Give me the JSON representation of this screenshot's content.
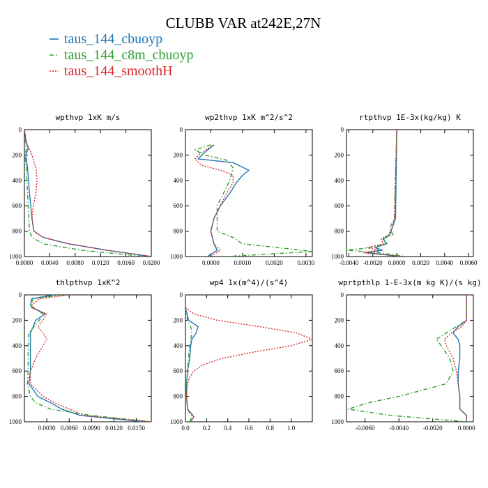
{
  "title": "CLUBB VAR at242E,27N",
  "colors": {
    "taus_144_cbuoyp": "#1f77b4",
    "taus_144_c8m_cbuoyp": "#2ca02c",
    "taus_144_smoothH": "#d62728"
  },
  "legend": [
    {
      "label": "taus_144_cbuoyp",
      "color": "#1f77b4",
      "dash": "solid"
    },
    {
      "label": "taus_144_c8m_cbuoyp",
      "color": "#2ca02c",
      "dash": "dashdot"
    },
    {
      "label": "taus_144_smoothH",
      "color": "#d62728",
      "dash": "dotted"
    }
  ],
  "chart_data": [
    {
      "type": "line",
      "title": "wpthvp  1xK m/s",
      "xlim": [
        0,
        0.02
      ],
      "ylim": [
        1000,
        0
      ],
      "xticks": [
        "0.0000",
        "0.0040",
        "0.0080",
        "0.0120",
        "0.0160",
        "0.0200"
      ],
      "xtick_values": [
        0,
        0.004,
        0.008,
        0.012,
        0.016,
        0.02
      ],
      "yticks": [
        "0",
        "200",
        "400",
        "600",
        "800",
        "1000"
      ],
      "series": [
        {
          "name": "taus_144_cbuoyp",
          "y": [
            0,
            100,
            150,
            200,
            300,
            500,
            700,
            800,
            850,
            900,
            950,
            1000
          ],
          "x": [
            0.0,
            0.0003,
            0.0006,
            0.0002,
            0.0005,
            0.0008,
            0.0012,
            0.0015,
            0.003,
            0.007,
            0.013,
            0.02
          ]
        },
        {
          "name": "taus_144_c8m_cbuoyp",
          "y": [
            0,
            100,
            150,
            200,
            300,
            500,
            700,
            800,
            850,
            900,
            950,
            1000
          ],
          "x": [
            0.0,
            0.0002,
            0.0003,
            0.0001,
            0.0003,
            0.0005,
            0.0007,
            0.0008,
            0.0012,
            0.003,
            0.009,
            0.019
          ]
        },
        {
          "name": "taus_144_smoothH",
          "y": [
            0,
            100,
            200,
            300,
            400,
            500,
            600,
            700,
            800,
            850,
            900,
            950,
            1000
          ],
          "x": [
            0.0,
            0.0003,
            0.0012,
            0.0018,
            0.002,
            0.0018,
            0.0014,
            0.0012,
            0.0015,
            0.003,
            0.007,
            0.013,
            0.02
          ]
        }
      ]
    },
    {
      "type": "line",
      "title": "wp2thvp  1xK m^2/s^2",
      "xlim": [
        -0.0008,
        0.0032
      ],
      "ylim": [
        1000,
        0
      ],
      "xticks": [
        "0.0000",
        "0.0010",
        "0.0020",
        "0.0030"
      ],
      "xtick_values": [
        0,
        0.001,
        0.002,
        0.003
      ],
      "yticks": [
        "0",
        "200",
        "400",
        "600",
        "800",
        "1000"
      ],
      "series": [
        {
          "name": "taus_144_cbuoyp",
          "y": [
            120,
            180,
            230,
            260,
            320,
            360,
            420,
            500,
            600,
            700,
            800,
            900,
            950,
            1000
          ],
          "x": [
            0.0001,
            -0.0002,
            -0.0004,
            0.0007,
            0.0012,
            0.001,
            0.0008,
            0.0006,
            0.0003,
            0.0001,
            0.0,
            0.0001,
            0.0002,
            -0.0001
          ]
        },
        {
          "name": "taus_144_c8m_cbuoyp",
          "y": [
            120,
            160,
            200,
            240,
            300,
            400,
            500,
            600,
            700,
            800,
            850,
            900,
            940,
            960,
            1000
          ],
          "x": [
            0.0,
            -0.0005,
            -0.0002,
            0.0005,
            0.0007,
            0.0006,
            0.0004,
            0.0002,
            0.0002,
            0.0002,
            0.0007,
            0.001,
            0.0025,
            0.0032,
            0.0005
          ]
        },
        {
          "name": "taus_144_smoothH",
          "y": [
            120,
            180,
            230,
            280,
            320,
            360,
            420,
            500,
            600,
            700,
            800,
            900,
            950,
            1000
          ],
          "x": [
            0.0001,
            -0.0003,
            -0.0005,
            -0.0003,
            0.0003,
            0.0007,
            0.0007,
            0.0005,
            0.0003,
            0.0001,
            0.0,
            0.0001,
            0.0003,
            0.0
          ]
        }
      ]
    },
    {
      "type": "line",
      "title": "rtpthvp  1E-3x(kg/kg) K",
      "xlim": [
        -0.0042,
        0.0064
      ],
      "ylim": [
        1000,
        0
      ],
      "xticks": [
        "-0.0040",
        "-0.0020",
        "0.0000",
        "0.0020",
        "0.0040",
        "0.0060"
      ],
      "xtick_values": [
        -0.004,
        -0.002,
        0,
        0.002,
        0.004,
        0.006
      ],
      "yticks": [
        "0",
        "200",
        "400",
        "600",
        "800",
        "1000"
      ],
      "series": [
        {
          "name": "taus_144_cbuoyp",
          "y": [
            0,
            700,
            780,
            830,
            860,
            900,
            930,
            950,
            970,
            1000
          ],
          "x": [
            0.0,
            -0.0001,
            -0.0004,
            -0.0006,
            -0.0011,
            -0.0009,
            -0.0018,
            -0.0012,
            -0.0025,
            0.0004
          ]
        },
        {
          "name": "taus_144_c8m_cbuoyp",
          "y": [
            0,
            700,
            780,
            830,
            860,
            900,
            930,
            950,
            970,
            1000
          ],
          "x": [
            0.0,
            -0.0002,
            -0.0006,
            -0.0003,
            -0.0012,
            -0.0008,
            -0.0022,
            -0.0042,
            -0.0015,
            0.0008
          ]
        },
        {
          "name": "taus_144_smoothH",
          "y": [
            0,
            700,
            780,
            830,
            860,
            900,
            930,
            950,
            970,
            1000
          ],
          "x": [
            0.0,
            -0.0002,
            -0.0004,
            -0.0007,
            -0.0013,
            -0.0011,
            -0.0025,
            -0.0015,
            -0.0028,
            0.0005
          ]
        }
      ]
    },
    {
      "type": "line",
      "title": "thlpthvp  1xK^2",
      "xlim": [
        0,
        0.017
      ],
      "ylim": [
        1000,
        0
      ],
      "xticks": [
        "0.0030",
        "0.0060",
        "0.0090",
        "0.0120",
        "0.0150"
      ],
      "xtick_values": [
        0.003,
        0.006,
        0.009,
        0.012,
        0.015
      ],
      "yticks": [
        "0",
        "200",
        "400",
        "600",
        "800",
        "1000"
      ],
      "series": [
        {
          "name": "taus_144_cbuoyp",
          "y": [
            0,
            30,
            80,
            100,
            150,
            200,
            250,
            300,
            400,
            500,
            600,
            700,
            800,
            850,
            900,
            950,
            1000
          ],
          "x": [
            0.004,
            0.001,
            0.0008,
            0.001,
            0.0028,
            0.0015,
            0.0012,
            0.0008,
            0.0008,
            0.0008,
            0.0008,
            0.0006,
            0.0018,
            0.0035,
            0.005,
            0.0075,
            0.016
          ]
        },
        {
          "name": "taus_144_c8m_cbuoyp",
          "y": [
            0,
            30,
            80,
            100,
            150,
            200,
            250,
            300,
            400,
            500,
            600,
            700,
            800,
            850,
            900,
            950,
            1000
          ],
          "x": [
            0.005,
            0.0012,
            0.0008,
            0.0012,
            0.0025,
            0.002,
            0.0013,
            0.0006,
            0.0005,
            0.0005,
            0.0005,
            0.0004,
            0.0008,
            0.0015,
            0.0035,
            0.009,
            0.017
          ]
        },
        {
          "name": "taus_144_smoothH",
          "y": [
            0,
            30,
            80,
            100,
            150,
            200,
            250,
            300,
            350,
            400,
            500,
            600,
            700,
            800,
            850,
            900,
            950,
            1000
          ],
          "x": [
            0.006,
            0.002,
            0.001,
            0.001,
            0.003,
            0.0025,
            0.0018,
            0.0025,
            0.003,
            0.0025,
            0.0015,
            0.0008,
            0.0008,
            0.0025,
            0.004,
            0.006,
            0.008,
            0.017
          ]
        }
      ]
    },
    {
      "type": "line",
      "title": "wp4  1x(m^4)/(s^4)",
      "xlim": [
        0,
        1.2
      ],
      "ylim": [
        1000,
        0
      ],
      "xticks": [
        "0.0",
        "0.2",
        "0.4",
        "0.6",
        "0.8",
        "1.0"
      ],
      "xtick_values": [
        0,
        0.2,
        0.4,
        0.6,
        0.8,
        1.0
      ],
      "yticks": [
        "0",
        "200",
        "400",
        "600",
        "800",
        "1000"
      ],
      "series": [
        {
          "name": "taus_144_cbuoyp",
          "y": [
            100,
            200,
            250,
            300,
            350,
            400,
            500,
            600,
            700,
            800,
            900,
            960,
            1000
          ],
          "x": [
            0.0,
            0.03,
            0.12,
            0.1,
            0.06,
            0.05,
            0.04,
            0.02,
            0.01,
            0.01,
            0.02,
            0.08,
            0.05
          ]
        },
        {
          "name": "taus_144_c8m_cbuoyp",
          "y": [
            100,
            200,
            250,
            300,
            350,
            400,
            500,
            600,
            700,
            800,
            900,
            960,
            1000
          ],
          "x": [
            0.0,
            0.02,
            0.05,
            0.06,
            0.05,
            0.04,
            0.03,
            0.02,
            0.01,
            0.01,
            0.02,
            0.06,
            0.04
          ]
        },
        {
          "name": "taus_144_smoothH",
          "y": [
            100,
            150,
            200,
            250,
            300,
            350,
            400,
            450,
            500,
            550,
            600,
            650,
            700,
            800,
            900,
            960,
            1000
          ],
          "x": [
            0.0,
            0.08,
            0.3,
            0.7,
            1.05,
            1.2,
            1.0,
            0.65,
            0.35,
            0.17,
            0.08,
            0.04,
            0.02,
            0.01,
            0.02,
            0.08,
            0.05
          ]
        }
      ]
    },
    {
      "type": "line",
      "title": "wprtpthlp  1-E-3x(m kg K)/(s kg)",
      "xlim": [
        -0.0071,
        0.0004
      ],
      "ylim": [
        1000,
        0
      ],
      "xticks": [
        "-0.0060",
        "-0.0040",
        "-0.0020",
        "0.0000"
      ],
      "xtick_values": [
        -0.006,
        -0.004,
        -0.002,
        0.0
      ],
      "yticks": [
        "0",
        "200",
        "400",
        "600",
        "800",
        "1000"
      ],
      "series": [
        {
          "name": "taus_144_cbuoyp",
          "y": [
            0,
            200,
            250,
            300,
            350,
            400,
            500,
            600,
            700,
            800,
            900,
            950,
            1000
          ],
          "x": [
            0.0,
            0.0,
            -0.0005,
            -0.0008,
            -0.0005,
            -0.0004,
            -0.0004,
            -0.0005,
            -0.0005,
            -0.0004,
            -0.0004,
            0.0,
            0.0
          ]
        },
        {
          "name": "taus_144_c8m_cbuoyp",
          "y": [
            0,
            200,
            250,
            300,
            350,
            400,
            500,
            600,
            700,
            800,
            850,
            900,
            950,
            1000
          ],
          "x": [
            0.0,
            0.0,
            -0.0006,
            -0.0012,
            -0.0018,
            -0.0015,
            -0.001,
            -0.0008,
            -0.0012,
            -0.004,
            -0.0058,
            -0.007,
            -0.0045,
            0.0
          ]
        },
        {
          "name": "taus_144_smoothH",
          "y": [
            0,
            200,
            250,
            300,
            350,
            400,
            500,
            600,
            700,
            800,
            900,
            950,
            1000
          ],
          "x": [
            0.0,
            0.0,
            -0.0003,
            -0.0009,
            -0.0013,
            -0.0012,
            -0.0008,
            -0.0006,
            -0.0005,
            -0.0004,
            -0.0004,
            0.0,
            0.0
          ]
        }
      ]
    }
  ]
}
